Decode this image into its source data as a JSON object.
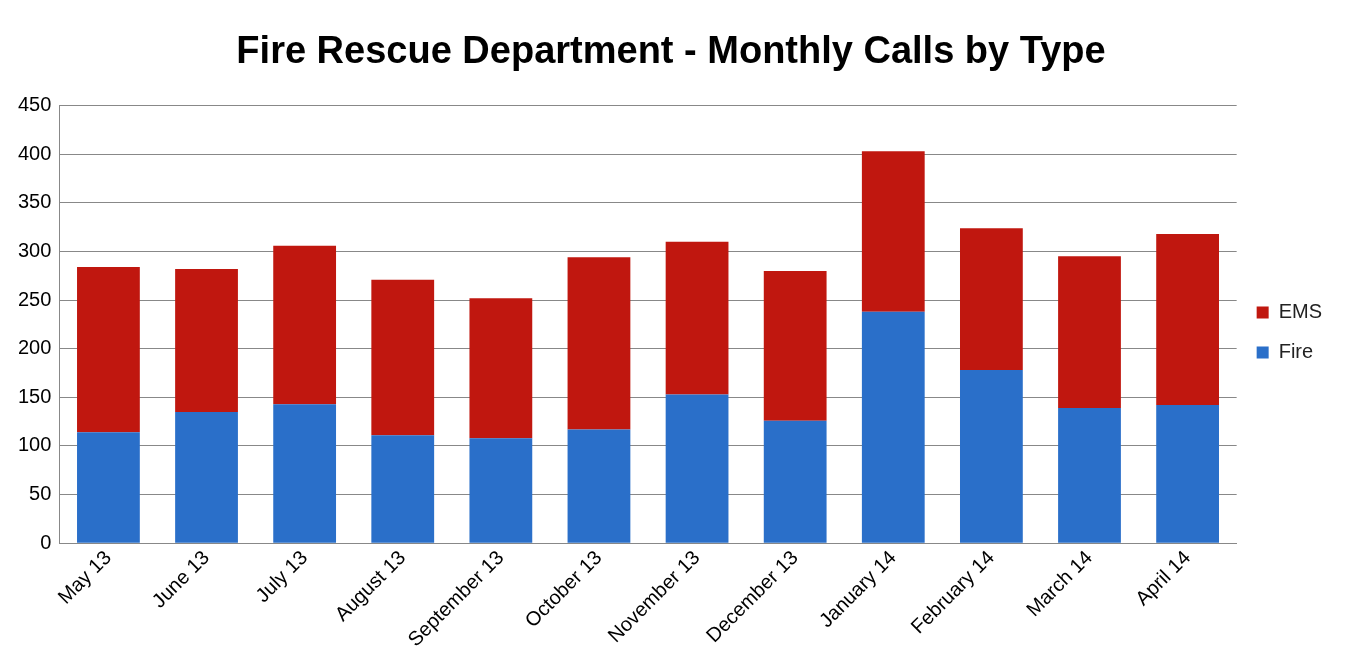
{
  "chart_data": {
    "type": "bar",
    "title": "Fire Rescue Department - Monthly Calls by Type",
    "categories": [
      "May 13",
      "June 13",
      "July 13",
      "August 13",
      "September 13",
      "October 13",
      "November 13",
      "December 13",
      "January 14",
      "February 14",
      "March 14",
      "April 14"
    ],
    "series": [
      {
        "name": "Fire",
        "color": "#2a6fc9",
        "values": [
          114,
          135,
          143,
          111,
          108,
          117,
          153,
          126,
          238,
          178,
          139,
          142
        ]
      },
      {
        "name": "EMS",
        "color": "#c0170f",
        "values": [
          170,
          147,
          163,
          160,
          144,
          177,
          157,
          154,
          165,
          146,
          156,
          176
        ]
      }
    ],
    "stacked": true,
    "ylim": [
      0,
      450
    ],
    "yticks": [
      0,
      50,
      100,
      150,
      200,
      250,
      300,
      350,
      400,
      450
    ],
    "grid": "y",
    "legend": "right"
  }
}
